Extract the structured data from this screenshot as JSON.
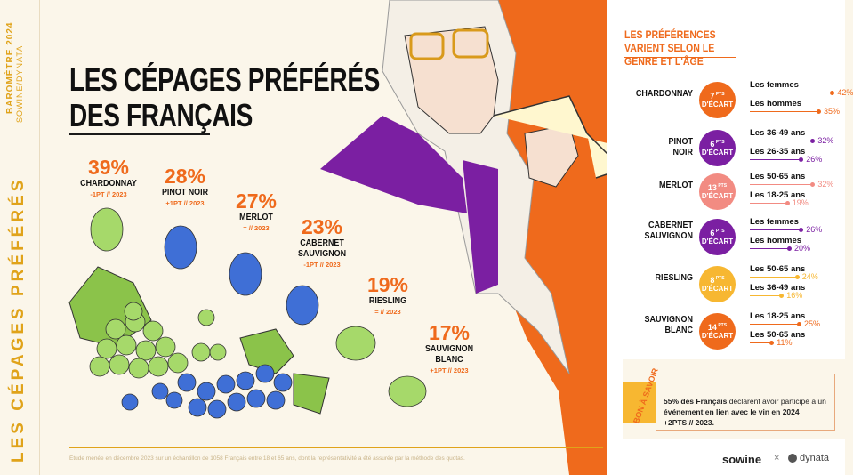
{
  "header": {
    "vertical_top": "BAROMÈTRE 2024",
    "vertical_sub": "SOWINE/DYNATA",
    "vertical_main": "LES CÉPAGES PRÉFÉRÉS",
    "title_line1": "LES CÉPAGES PRÉFÉRÉS",
    "title_line2": "DES FRANÇAIS"
  },
  "colors": {
    "orange": "#ef6a1c",
    "purple": "#7b1fa2",
    "pink": "#f28b82",
    "yellow": "#f7b731",
    "green": "#a6d96a",
    "blue": "#3f6fd6"
  },
  "chart_data": [
    {
      "type": "bar",
      "title": "LES CÉPAGES PRÉFÉRÉS DES FRANÇAIS",
      "categories": [
        "CHARDONNAY",
        "PINOT NOIR",
        "MERLOT",
        "CABERNET SAUVIGNON",
        "RIESLING",
        "SAUVIGNON BLANC"
      ],
      "values": [
        39,
        28,
        27,
        23,
        19,
        17
      ],
      "labels": [
        "39%",
        "28%",
        "27%",
        "23%",
        "19%",
        "17%"
      ],
      "evolution": [
        "-1PT // 2023",
        "+1PT // 2023",
        "= // 2023",
        "-1PT // 2023",
        "= // 2023",
        "+1PT // 2023"
      ]
    },
    {
      "type": "table",
      "title": "LES PRÉFÉRENCES VARIENT SELON LE GENRE ET L'ÂGE",
      "rows": [
        {
          "grape": "CHARDONNAY",
          "gap": "7",
          "color": "#ef6a1c",
          "segments": [
            {
              "label": "Les femmes",
              "value": 42,
              "text": "42%"
            },
            {
              "label": "Les hommes",
              "value": 35,
              "text": "35%"
            }
          ]
        },
        {
          "grape": "PINOT NOIR",
          "gap": "6",
          "color": "#7b1fa2",
          "segments": [
            {
              "label": "Les 36-49 ans",
              "value": 32,
              "text": "32%"
            },
            {
              "label": "Les 26-35 ans",
              "value": 26,
              "text": "26%"
            }
          ]
        },
        {
          "grape": "MERLOT",
          "gap": "13",
          "color": "#f28b82",
          "segments": [
            {
              "label": "Les 50-65 ans",
              "value": 32,
              "text": "32%"
            },
            {
              "label": "Les 18-25 ans",
              "value": 19,
              "text": "19%"
            }
          ]
        },
        {
          "grape": "CABERNET SAUVIGNON",
          "gap": "6",
          "color": "#7b1fa2",
          "segments": [
            {
              "label": "Les femmes",
              "value": 26,
              "text": "26%"
            },
            {
              "label": "Les hommes",
              "value": 20,
              "text": "20%"
            }
          ]
        },
        {
          "grape": "RIESLING",
          "gap": "8",
          "color": "#f7b731",
          "segments": [
            {
              "label": "Les 50-65 ans",
              "value": 24,
              "text": "24%"
            },
            {
              "label": "Les 36-49 ans",
              "value": 16,
              "text": "16%"
            }
          ]
        },
        {
          "grape": "SAUVIGNON BLANC",
          "gap": "14",
          "color": "#ef6a1c",
          "segments": [
            {
              "label": "Les 18-25 ans",
              "value": 25,
              "text": "25%"
            },
            {
              "label": "Les 50-65 ans",
              "value": 11,
              "text": "11%"
            }
          ]
        }
      ]
    }
  ],
  "gap_suffix": "PTS",
  "gap_label": "D'ÉCART",
  "bon_a_savoir": {
    "tag": "BON À SAVOIR",
    "text_pre": "55% des Français",
    "text_mid": " déclarent avoir participé à un ",
    "text_bold": "événement en lien avec le vin en 2024",
    "evolution": "+2PTS // 2023."
  },
  "footer": "Étude menée en décembre 2023 sur un échantillon de 1058 Français entre 18 et 65 ans, dont la représentativité a été assurée par la méthode des quotas.",
  "logos": {
    "sowine": "sowine",
    "times": "×",
    "dynata": "dynata"
  }
}
